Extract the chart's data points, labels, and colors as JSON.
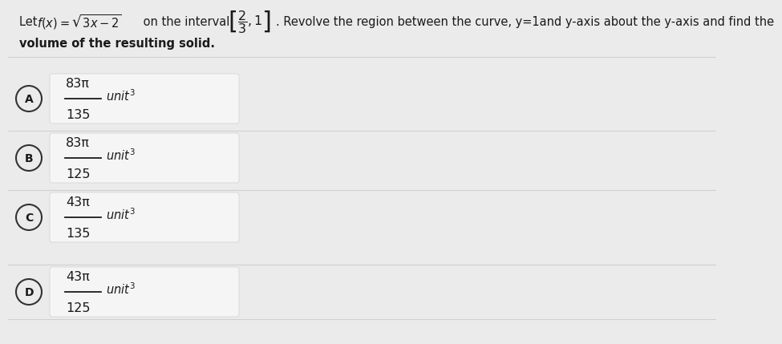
{
  "title_line1_prefix": "Let ",
  "title_line1_func": "$f(x)=\\sqrt{3x-2}$",
  "title_line1_interval_pre": " on the interval ",
  "title_line1_interval": "$\\left[\\dfrac{2}{3}, 1\\right]$",
  "title_line1_suffix": ". Revolve the region between the curve, y=1and y-axis about the y-axis and find the",
  "title_line2": "volume of the resulting solid.",
  "options": [
    {
      "label": "A",
      "numerator": "83π",
      "denominator": "135"
    },
    {
      "label": "B",
      "numerator": "83π",
      "denominator": "125"
    },
    {
      "label": "C",
      "numerator": "43π",
      "denominator": "135"
    },
    {
      "label": "D",
      "numerator": "43π",
      "denominator": "125"
    }
  ],
  "bg_color": "#ebebeb",
  "option_box_color": "#f5f5f5",
  "option_box_border": "#d0d0d0",
  "divider_color": "#d0d0d0",
  "text_color": "#1a1a1a",
  "circle_face_color": "#ebebeb",
  "circle_edge_color": "#333333",
  "fontsize_main": 10.5,
  "fontsize_option": 11.5,
  "fontsize_unit": 10.5
}
